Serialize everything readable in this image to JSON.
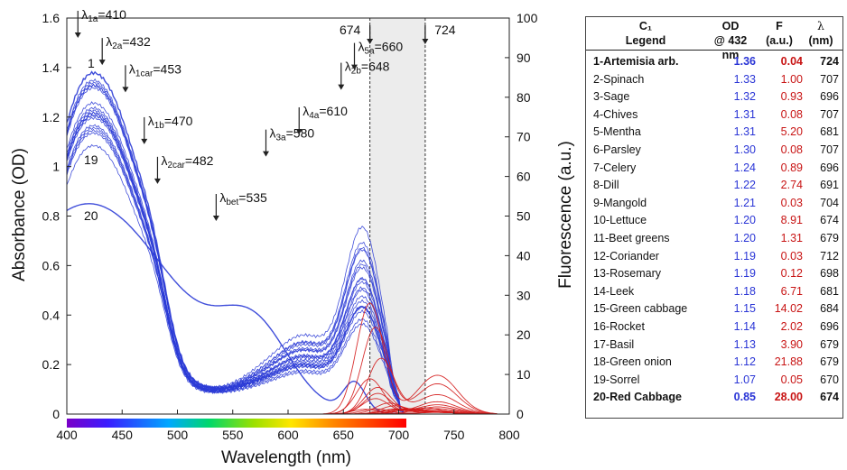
{
  "chart_data": {
    "type": "line",
    "xlabel": "Wavelength (nm)",
    "ylabel_left": "Absorbance (OD)",
    "ylabel_right": "Fluorescence (a.u.)",
    "xlim": [
      400,
      800
    ],
    "ylim_left": [
      0,
      1.6
    ],
    "ylim_right": [
      0,
      100
    ],
    "x_ticks": [
      "400",
      "450",
      "500",
      "550",
      "600",
      "650",
      "700",
      "750",
      "800"
    ],
    "y_ticks_left": [
      "0",
      "0.2",
      "0.4",
      "0.6",
      "0.8",
      "1",
      "1.2",
      "1.4",
      "1.6"
    ],
    "y_ticks_right": [
      "0",
      "10",
      "20",
      "30",
      "40",
      "50",
      "60",
      "70",
      "80",
      "90",
      "100"
    ],
    "shaded_band": [
      674,
      724
    ],
    "band_labels": [
      "674",
      "724"
    ],
    "curve_labels": [
      "1",
      "19",
      "20"
    ],
    "annotations": [
      {
        "greek": "λ",
        "sub": "1a",
        "val": "=410",
        "x": 410,
        "y": 1.52
      },
      {
        "greek": "λ",
        "sub": "2a",
        "val": "=432",
        "x": 432,
        "y": 1.41
      },
      {
        "greek": "λ",
        "sub": "1car",
        "val": "=453",
        "x": 453,
        "y": 1.3
      },
      {
        "greek": "λ",
        "sub": "1b",
        "val": "=470",
        "x": 470,
        "y": 1.09
      },
      {
        "greek": "λ",
        "sub": "2car",
        "val": "=482",
        "x": 482,
        "y": 0.93
      },
      {
        "greek": "λ",
        "sub": "bet",
        "val": "=535",
        "x": 535,
        "y": 0.78
      },
      {
        "greek": "λ",
        "sub": "3a",
        "val": "=580",
        "x": 580,
        "y": 1.04
      },
      {
        "greek": "λ",
        "sub": "4a",
        "val": "=610",
        "x": 610,
        "y": 1.13
      },
      {
        "greek": "λ",
        "sub": "2b",
        "val": "=648",
        "x": 648,
        "y": 1.31
      },
      {
        "greek": "λ",
        "sub": "5a",
        "val": "=660",
        "x": 660,
        "y": 1.39
      }
    ],
    "absorbance_peak_OD": [
      1.36,
      1.33,
      1.32,
      1.31,
      1.31,
      1.3,
      1.24,
      1.22,
      1.21,
      1.2,
      1.2,
      1.19,
      1.19,
      1.18,
      1.15,
      1.14,
      1.13,
      1.12,
      1.07,
      0.85
    ],
    "fluorescence_peak_F": [
      0.04,
      1.0,
      0.93,
      0.08,
      5.2,
      0.08,
      0.89,
      2.74,
      0.03,
      8.91,
      1.31,
      0.03,
      0.12,
      6.71,
      14.02,
      2.02,
      3.9,
      21.88,
      0.05,
      28.0
    ],
    "fluorescence_peak_nm": [
      724,
      707,
      696,
      707,
      681,
      707,
      696,
      691,
      704,
      674,
      679,
      712,
      698,
      681,
      684,
      696,
      679,
      679,
      670,
      674
    ],
    "colors": {
      "absorbance": "#2b3bd6",
      "fluorescence": "#d41a1a",
      "band": "#ececec"
    }
  },
  "legend": {
    "header": {
      "name_line1": "C₁",
      "name_line2": "Legend",
      "od_line1": "OD",
      "od_line2": "@ 432 nm",
      "f_line1": "F",
      "f_line2": "(a.u.)",
      "l_line1": "λ",
      "l_line2": "(nm)"
    },
    "rows": [
      {
        "name": "1-Artemisia arb.",
        "od": "1.36",
        "f": "0.04",
        "l": "724",
        "bold": true
      },
      {
        "name": "2-Spinach",
        "od": "1.33",
        "f": "1.00",
        "l": "707"
      },
      {
        "name": "3-Sage",
        "od": "1.32",
        "f": "0.93",
        "l": "696"
      },
      {
        "name": "4-Chives",
        "od": "1.31",
        "f": "0.08",
        "l": "707"
      },
      {
        "name": "5-Mentha",
        "od": "1.31",
        "f": "5.20",
        "l": "681"
      },
      {
        "name": "6-Parsley",
        "od": "1.30",
        "f": "0.08",
        "l": "707"
      },
      {
        "name": "7-Celery",
        "od": "1.24",
        "f": "0.89",
        "l": "696"
      },
      {
        "name": "8-Dill",
        "od": "1.22",
        "f": "2.74",
        "l": "691"
      },
      {
        "name": "9-Mangold",
        "od": "1.21",
        "f": "0.03",
        "l": "704"
      },
      {
        "name": "10-Lettuce",
        "od": "1.20",
        "f": "8.91",
        "l": "674"
      },
      {
        "name": "11-Beet greens",
        "od": "1.20",
        "f": "1.31",
        "l": "679"
      },
      {
        "name": "12-Coriander",
        "od": "1.19",
        "f": "0.03",
        "l": "712"
      },
      {
        "name": "13-Rosemary",
        "od": "1.19",
        "f": "0.12",
        "l": "698"
      },
      {
        "name": "14-Leek",
        "od": "1.18",
        "f": "6.71",
        "l": "681"
      },
      {
        "name": "15-Green cabbage",
        "od": "1.15",
        "f": "14.02",
        "l": "684"
      },
      {
        "name": "16-Rocket",
        "od": "1.14",
        "f": "2.02",
        "l": "696"
      },
      {
        "name": "17-Basil",
        "od": "1.13",
        "f": "3.90",
        "l": "679"
      },
      {
        "name": "18-Green onion",
        "od": "1.12",
        "f": "21.88",
        "l": "679"
      },
      {
        "name": "19-Sorrel",
        "od": "1.07",
        "f": "0.05",
        "l": "670"
      },
      {
        "name": "20-Red Cabbage",
        "od": "0.85",
        "f": "28.00",
        "l": "674",
        "bold": true
      }
    ]
  }
}
